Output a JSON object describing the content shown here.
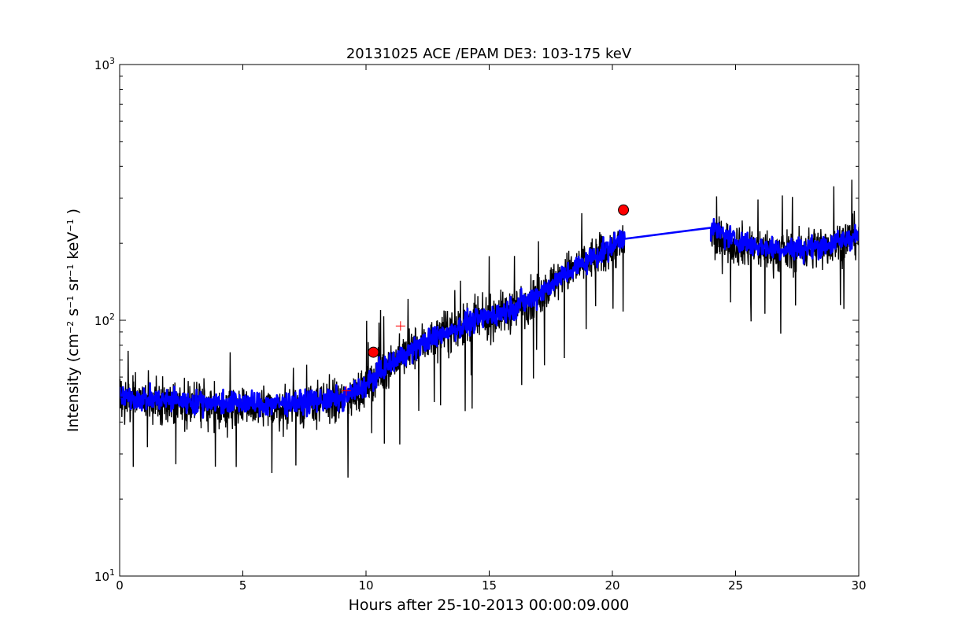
{
  "chart_data": {
    "type": "line",
    "title": "20131025 ACE /EPAM DE3: 103-175 keV",
    "xlabel": "Hours after 25-10-2013 00:00:09.000",
    "ylabel_parts": {
      "prefix": "Intensity (cm",
      "exp1": "−2",
      "s": " s",
      "exp2": "−1",
      "sr": " sr",
      "exp3": "−1",
      "kev": " keV",
      "exp4": "−1",
      "suffix": " )"
    },
    "xlim": [
      0,
      30
    ],
    "ylim": [
      10,
      1000
    ],
    "yscale": "log",
    "x_ticks": [
      0,
      5,
      10,
      15,
      20,
      25,
      30
    ],
    "x_tick_labels": [
      "0",
      "5",
      "10",
      "15",
      "20",
      "25",
      "30"
    ],
    "y_ticks": [
      10,
      100,
      1000
    ],
    "y_tick_labels": [
      {
        "base": "10",
        "exp": "1"
      },
      {
        "base": "10",
        "exp": "2"
      },
      {
        "base": "10",
        "exp": "3"
      }
    ],
    "grid": false,
    "series": [
      {
        "role": "raw intensity",
        "color": "#000000",
        "segments": [
          {
            "x_start": 0.0,
            "x_end": 20.5,
            "trend": [
              [
                0,
                50
              ],
              [
                3,
                47
              ],
              [
                6,
                45
              ],
              [
                9,
                48
              ],
              [
                10,
                55
              ],
              [
                11,
                68
              ],
              [
                12,
                78
              ],
              [
                13,
                88
              ],
              [
                14,
                95
              ],
              [
                15,
                102
              ],
              [
                16,
                110
              ],
              [
                17,
                125
              ],
              [
                18,
                150
              ],
              [
                19,
                170
              ],
              [
                20,
                190
              ],
              [
                20.5,
                200
              ]
            ]
          },
          {
            "x_start": 24.0,
            "x_end": 30.0,
            "trend": [
              [
                24,
                210
              ],
              [
                25,
                200
              ],
              [
                26,
                190
              ],
              [
                27,
                185
              ],
              [
                28,
                190
              ],
              [
                29,
                200
              ],
              [
                30,
                215
              ]
            ]
          }
        ]
      },
      {
        "role": "smoothed intensity",
        "color": "#0000ff",
        "points": [
          [
            0,
            50
          ],
          [
            3,
            48
          ],
          [
            6,
            47
          ],
          [
            9,
            49
          ],
          [
            10,
            56
          ],
          [
            11,
            68
          ],
          [
            12,
            78
          ],
          [
            13,
            88
          ],
          [
            14,
            96
          ],
          [
            15,
            104
          ],
          [
            16,
            112
          ],
          [
            17,
            127
          ],
          [
            18,
            150
          ],
          [
            19,
            172
          ],
          [
            20,
            195
          ],
          [
            20.5,
            215
          ],
          [
            24,
            230
          ],
          [
            25,
            205
          ],
          [
            26,
            195
          ],
          [
            27,
            190
          ],
          [
            28,
            192
          ],
          [
            29,
            200
          ],
          [
            30,
            215
          ]
        ]
      }
    ],
    "markers": [
      {
        "type": "circle",
        "color": "#ff0000",
        "x": 10.3,
        "y": 75
      },
      {
        "type": "circle",
        "color": "#ff0000",
        "x": 20.45,
        "y": 270
      },
      {
        "type": "plus",
        "color": "#ff0000",
        "x": 9.2,
        "y": 53
      },
      {
        "type": "plus",
        "color": "#ff0000",
        "x": 11.4,
        "y": 95
      }
    ]
  }
}
